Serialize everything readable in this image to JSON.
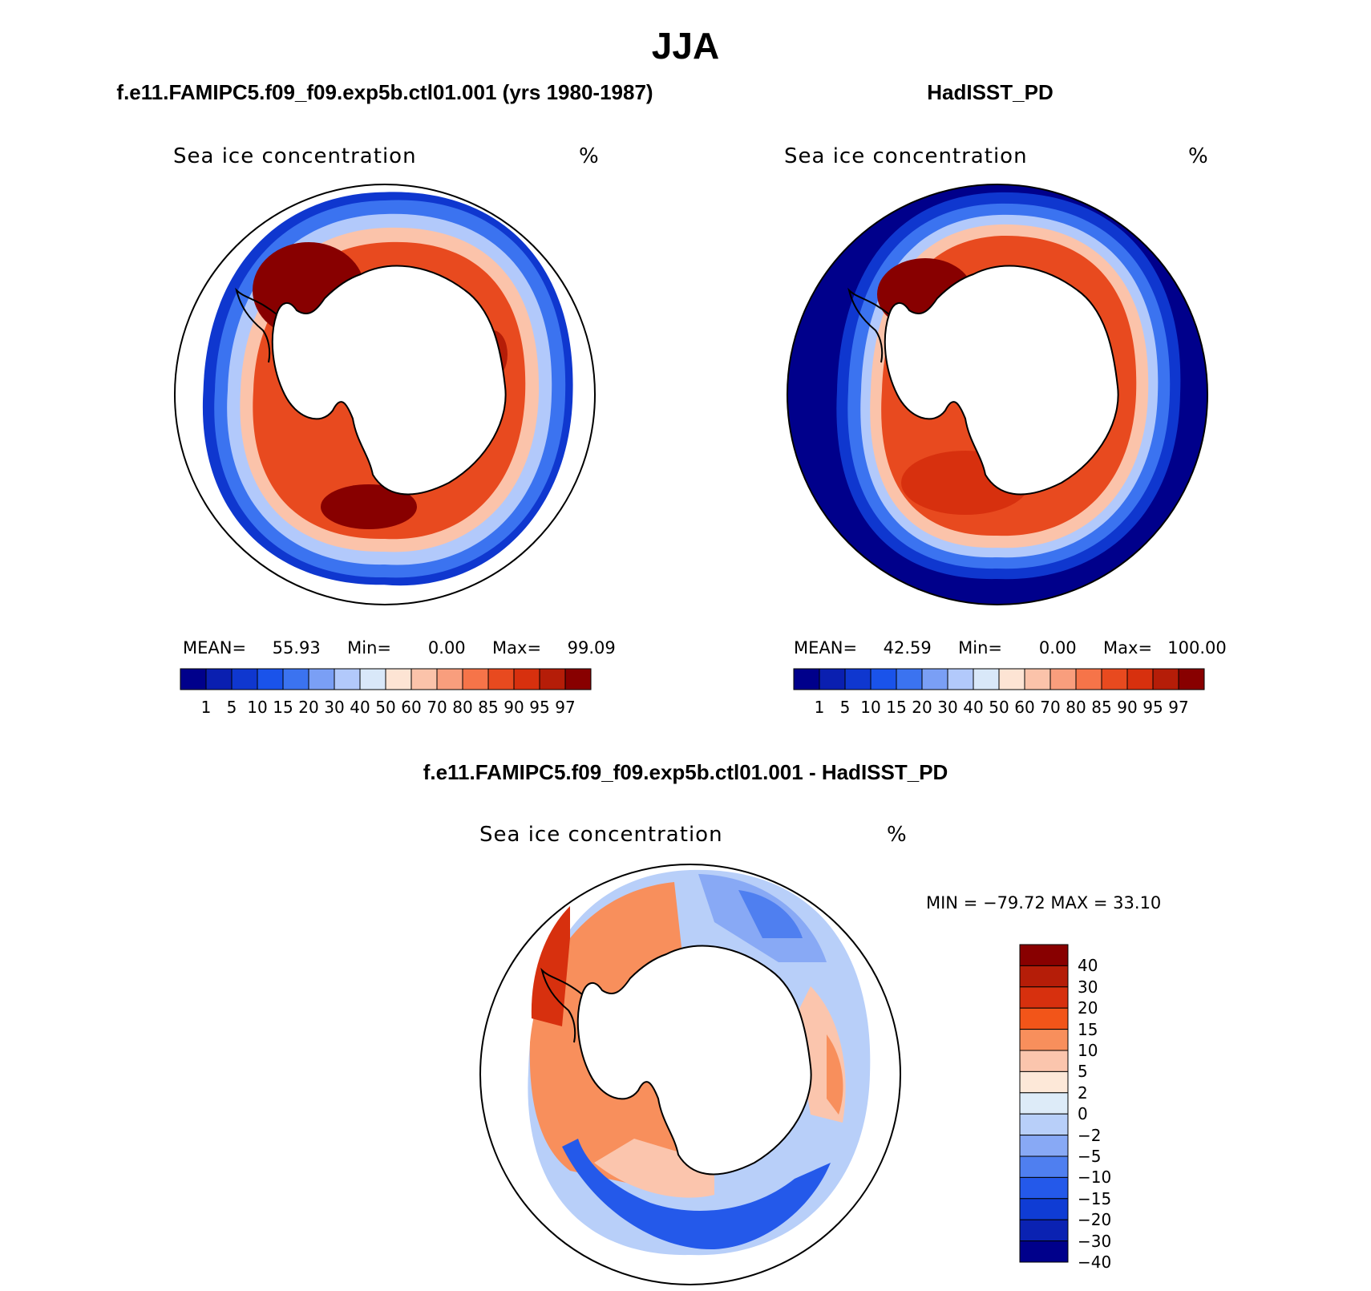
{
  "figure": {
    "title": "JJA"
  },
  "panels": [
    {
      "title": "f.e11.FAMIPC5.f09_f09.exp5b.ctl01.001 (yrs 1980-1987)",
      "variable": "Sea ice concentration",
      "units": "%",
      "stats": {
        "mean_label": "MEAN=",
        "mean": "55.93",
        "min_label": "Min=",
        "min": "0.00",
        "max_label": "Max=",
        "max": "99.09"
      }
    },
    {
      "title": "HadISST_PD",
      "variable": "Sea ice concentration",
      "units": "%",
      "stats": {
        "mean_label": "MEAN=",
        "mean": "42.59",
        "min_label": "Min=",
        "min": "0.00",
        "max_label": "Max=",
        "max": "100.00"
      }
    }
  ],
  "difference_panel": {
    "title": "f.e11.FAMIPC5.f09_f09.exp5b.ctl01.001 - HadISST_PD",
    "variable": "Sea ice concentration",
    "units": "%",
    "stats_text": "MIN = −79.72 MAX =   33.10"
  },
  "colorbar_abs": {
    "colors": [
      "#00008b",
      "#0a1fb0",
      "#0f37cf",
      "#1a53ea",
      "#3b73f0",
      "#7a9ff5",
      "#b2c9fb",
      "#d9e8f9",
      "#fde4d4",
      "#fbc3aa",
      "#f99e7d",
      "#f67449",
      "#e84a1f",
      "#d7300e",
      "#b51d08",
      "#880000"
    ],
    "ticks": [
      "1",
      "5",
      "10",
      "15",
      "20",
      "30",
      "40",
      "50",
      "60",
      "70",
      "80",
      "85",
      "90",
      "95",
      "97"
    ]
  },
  "colorbar_diff": {
    "colors": [
      "#880000",
      "#b51d08",
      "#d7300e",
      "#f25519",
      "#f88f5c",
      "#fbc5ad",
      "#fde8d8",
      "#ddebf8",
      "#b8cff9",
      "#88a9f5",
      "#4f7ff0",
      "#2459ea",
      "#0f3cd4",
      "#0a22b2",
      "#00008b"
    ],
    "ticks": [
      "40",
      "30",
      "20",
      "15",
      "10",
      "5",
      "2",
      "0",
      "−2",
      "−5",
      "−10",
      "−15",
      "−20",
      "−30",
      "−40"
    ]
  }
}
